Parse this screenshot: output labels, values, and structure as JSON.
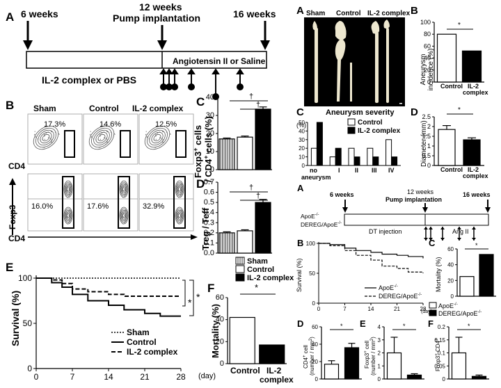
{
  "colors": {
    "black": "#000000",
    "white": "#ffffff",
    "sham_fill": "#bbbbbb",
    "plot_bg": "#eeeeee",
    "aorta": "#ede7cf"
  },
  "panelL_A": {
    "letter": "A",
    "label_6w": "6 weeks",
    "label_12w": "12 weeks",
    "label_pump": "Pump implantation",
    "label_16w": "16 weeks",
    "angiotensin": "Angiotensin II or Saline",
    "il2": "IL-2 complex or PBS"
  },
  "panelL_B": {
    "letter": "B",
    "groups": [
      "Sham",
      "Control",
      "IL-2 complex"
    ],
    "top_pct": [
      "17.3%",
      "14.6%",
      "12.5%"
    ],
    "bottom_pct": [
      "16.0%",
      "17.6%",
      "32.9%"
    ],
    "xaxis": "CD4",
    "yaxis": "Foxp3"
  },
  "panelL_C": {
    "letter": "C",
    "ylabel_line1": "Foxp3",
    "ylabel_sup": "+",
    "ylabel_line2": " cells",
    "ylabel_line3": "/ CD4",
    "ylabel_line4": " cells (%)",
    "ticks": [
      "0",
      "10",
      "20",
      "30",
      "40"
    ],
    "sig": [
      "†",
      "†"
    ]
  },
  "panelL_D": {
    "letter": "D",
    "ylabel": "Treg / Teff",
    "ticks": [
      "0.0",
      "0.1",
      "0.2",
      "0.3",
      "0.4",
      "0.5",
      "0.6",
      "0.7"
    ],
    "sig": [
      "†",
      "†"
    ]
  },
  "legend_L": [
    "Sham",
    "Control",
    "IL-2 complex"
  ],
  "panelL_E": {
    "letter": "E",
    "ylabel": "Survival (%)",
    "xlabel": "(day)",
    "xticks": [
      "0",
      "7",
      "14",
      "21",
      "28"
    ],
    "yticks": [
      "0",
      "50",
      "100"
    ],
    "legend": [
      "Sham",
      "Control",
      "IL-2 complex"
    ],
    "sig": [
      "*",
      "*"
    ]
  },
  "panelL_F": {
    "letter": "F",
    "ylabel": "Mortality (%)",
    "ticks": [
      "0",
      "20",
      "40",
      "60"
    ],
    "cats": [
      "Control",
      "IL-2",
      "complex"
    ],
    "sig": "*"
  },
  "panelR_A": {
    "letter": "A",
    "groups": [
      "Sham",
      "Control",
      "IL-2 complex"
    ]
  },
  "panelR_B": {
    "letter": "B",
    "ylabel": "Aneurysm incidence (%)",
    "ticks": [
      "0",
      "20",
      "40",
      "60",
      "80",
      "100"
    ],
    "cats": [
      "Control",
      "IL-2",
      "complex"
    ],
    "sig": "*"
  },
  "panelR_C": {
    "letter": "C",
    "title": "Aneurysm severity",
    "yunit": "(%)",
    "ticks": [
      "0",
      "10",
      "20",
      "30",
      "40",
      "50"
    ],
    "cats": [
      "no",
      "aneurysm",
      "I",
      "II",
      "III",
      "IV"
    ],
    "legend": [
      "Control",
      "IL-2 complex"
    ]
  },
  "panelR_D": {
    "letter": "D",
    "ylabel": "Diameter (mm)",
    "ticks": [
      "0",
      "0.5",
      "1",
      "1.5",
      "2",
      "2.5"
    ],
    "cats": [
      "Control",
      "IL-2",
      "complex"
    ],
    "sig": "*"
  },
  "panelR2_A": {
    "letter": "A",
    "label_6w": "6 weeks",
    "label_12w": "12 weeks",
    "label_pump": "Pump implantation",
    "label_16w": "16 weeks",
    "row1": "ApoE",
    "row2": "DEREG/ApoE",
    "sup": "-/-",
    "angii": "Ang II",
    "dt": "DT injection"
  },
  "panelR2_B": {
    "letter": "B",
    "ylabel": "Survival (%)",
    "xlabel": "(day)",
    "xticks": [
      "0",
      "7",
      "14",
      "21",
      "28"
    ],
    "yticks": [
      "0",
      "50",
      "100"
    ],
    "legend": [
      "ApoE",
      "DEREG/ApoE"
    ],
    "sup": "-/-"
  },
  "panelR2_C": {
    "letter": "C",
    "ylabel": "Mortality (%)",
    "ticks": [
      "0",
      "20",
      "40",
      "60"
    ],
    "sig": "*"
  },
  "legend_R2": [
    "ApoE",
    "DEREG/ApoE"
  ],
  "panelR2_D": {
    "letter": "D",
    "ylabel1": "CD4",
    "ylabel2": "cell",
    "ylabel3": "(number / mm",
    "ticks": [
      "0",
      "20",
      "40",
      "60"
    ],
    "sig": "*"
  },
  "panelR2_E": {
    "letter": "E",
    "ylabel1": "Foxp3",
    "ylabel2": "cell",
    "ylabel3": "(number / mm",
    "ticks": [
      "0",
      "1",
      "2",
      "3",
      "4"
    ],
    "sig": "*"
  },
  "panelR2_F": {
    "letter": "F",
    "ylabel1": "Foxp3",
    "ylabel2": "CD4",
    "ticks": [
      "0",
      "0.05",
      "0.1",
      "0.15",
      "0.2"
    ],
    "sig": "*"
  },
  "chart_data": [
    {
      "id": "L_C",
      "type": "bar",
      "categories": [
        "Sham",
        "Control",
        "IL-2 complex"
      ],
      "values": [
        17,
        18,
        33.5
      ],
      "errors": [
        0.5,
        0.6,
        1.2
      ],
      "ylim": [
        0,
        40
      ]
    },
    {
      "id": "L_D",
      "type": "bar",
      "categories": [
        "Sham",
        "Control",
        "IL-2 complex"
      ],
      "values": [
        0.2,
        0.22,
        0.5
      ],
      "errors": [
        0.01,
        0.01,
        0.03
      ],
      "ylim": [
        0,
        0.7
      ]
    },
    {
      "id": "L_E",
      "type": "line",
      "x": [
        0,
        3,
        5,
        7,
        10,
        14,
        17,
        21,
        24,
        28
      ],
      "series": [
        {
          "name": "Sham",
          "values": [
            100,
            100,
            100,
            100,
            100,
            100,
            100,
            100,
            100,
            100
          ]
        },
        {
          "name": "IL-2 complex",
          "values": [
            100,
            98,
            94,
            88,
            85,
            82,
            80,
            80,
            80,
            80
          ]
        },
        {
          "name": "Control",
          "values": [
            100,
            95,
            90,
            82,
            75,
            70,
            65,
            61,
            58,
            58
          ]
        }
      ],
      "xlim": [
        0,
        28
      ],
      "ylim": [
        0,
        100
      ]
    },
    {
      "id": "L_F",
      "type": "bar",
      "categories": [
        "Control",
        "IL-2 complex"
      ],
      "values": [
        42,
        17
      ],
      "ylim": [
        0,
        60
      ]
    },
    {
      "id": "R_B",
      "type": "bar",
      "categories": [
        "Control",
        "IL-2 complex"
      ],
      "values": [
        80,
        52
      ],
      "ylim": [
        0,
        100
      ]
    },
    {
      "id": "R_C",
      "type": "bar",
      "categories": [
        "no aneurysm",
        "I",
        "II",
        "III",
        "IV"
      ],
      "series": [
        {
          "name": "Control",
          "values": [
            20,
            10,
            20,
            20,
            30
          ]
        },
        {
          "name": "IL-2 complex",
          "values": [
            50,
            20,
            10,
            10,
            10
          ]
        }
      ],
      "ylim": [
        0,
        50
      ]
    },
    {
      "id": "R_D",
      "type": "bar",
      "categories": [
        "Control",
        "IL-2 complex"
      ],
      "values": [
        1.85,
        1.32
      ],
      "errors": [
        0.2,
        0.1
      ],
      "ylim": [
        0,
        2.5
      ]
    },
    {
      "id": "R2_B",
      "type": "line",
      "x": [
        0,
        3,
        7,
        10,
        14,
        17,
        21,
        24,
        28
      ],
      "series": [
        {
          "name": "ApoE-/-",
          "values": [
            100,
            98,
            92,
            88,
            85,
            82,
            80,
            78,
            75
          ]
        },
        {
          "name": "DEREG/ApoE-/-",
          "values": [
            100,
            96,
            88,
            80,
            72,
            62,
            58,
            52,
            50
          ]
        }
      ],
      "xlim": [
        0,
        28
      ],
      "ylim": [
        0,
        100
      ]
    },
    {
      "id": "R2_C",
      "type": "bar",
      "categories": [
        "ApoE-/-",
        "DEREG/ApoE-/-"
      ],
      "values": [
        25,
        53
      ],
      "ylim": [
        0,
        60
      ]
    },
    {
      "id": "R2_D",
      "type": "bar",
      "categories": [
        "ApoE-/-",
        "DEREG/ApoE-/-"
      ],
      "values": [
        17,
        36
      ],
      "errors": [
        4,
        5
      ],
      "ylim": [
        0,
        60
      ]
    },
    {
      "id": "R2_E",
      "type": "bar",
      "categories": [
        "ApoE-/-",
        "DEREG/ApoE-/-"
      ],
      "values": [
        2.0,
        0.3
      ],
      "errors": [
        1.2,
        0.1
      ],
      "ylim": [
        0,
        4
      ]
    },
    {
      "id": "R2_F",
      "type": "bar",
      "categories": [
        "ApoE-/-",
        "DEREG/ApoE-/-"
      ],
      "values": [
        0.1,
        0.01
      ],
      "errors": [
        0.06,
        0.005
      ],
      "ylim": [
        0,
        0.2
      ]
    }
  ]
}
